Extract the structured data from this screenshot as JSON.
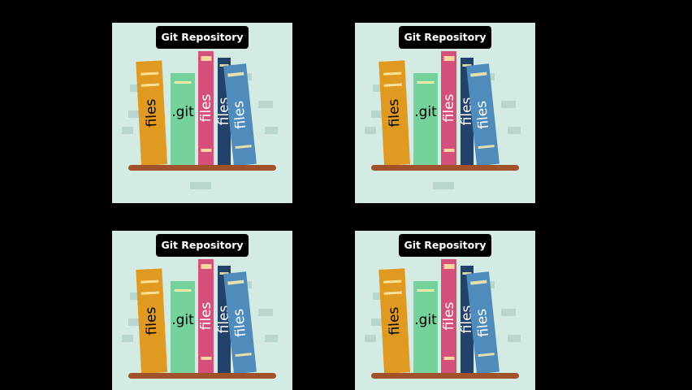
{
  "panels": [
    {
      "title": "Git Repository"
    },
    {
      "title": "Git Repository"
    },
    {
      "title": "Git Repository"
    },
    {
      "title": "Git Repository"
    }
  ],
  "books": [
    {
      "label": "files",
      "color": "#e09a22",
      "label_color": "#000000"
    },
    {
      "label": ".git",
      "color": "#76d29c",
      "label_color": "#000000"
    },
    {
      "label": "files",
      "color": "#d44f7a",
      "label_color": "#ffffff"
    },
    {
      "label": "files",
      "color": "#23426b",
      "label_color": "#ffffff"
    },
    {
      "label": "files",
      "color": "#4f8cbc",
      "label_color": "#ffffff"
    }
  ],
  "colors": {
    "background": "#000000",
    "panel": "#d3ebe3",
    "shelf": "#a1522a",
    "badge": "#000000"
  }
}
